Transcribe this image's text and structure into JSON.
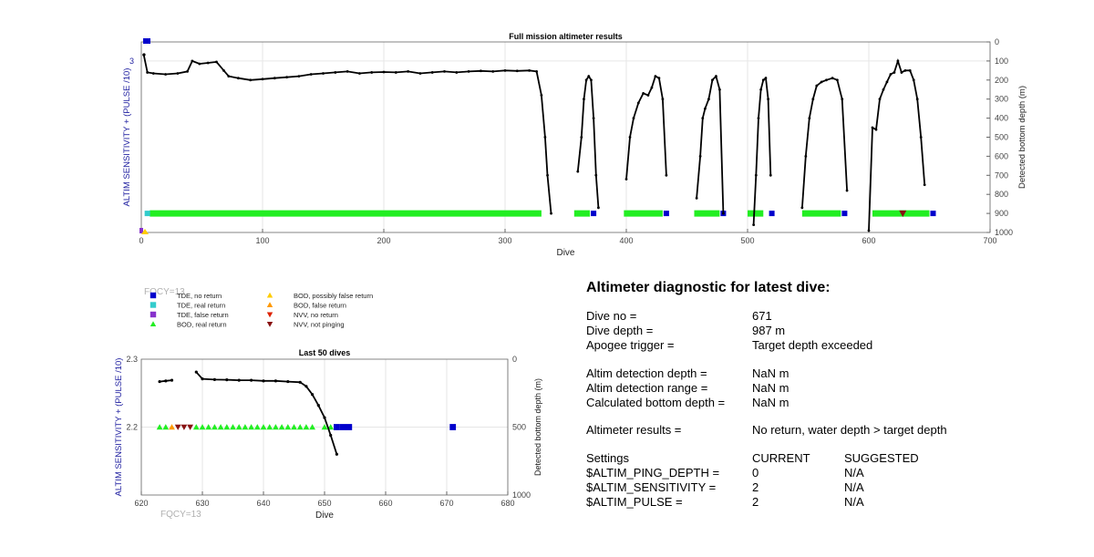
{
  "chart_data": [
    {
      "type": "scatter",
      "title": "Full mission altimeter results",
      "xlabel": "Dive",
      "ylabel_left": "ALTIM SENSITIVITY + (PULSE /10)",
      "ylabel_right": "Detected bottom depth (m)",
      "xlim": [
        0,
        700
      ],
      "ylim_right": [
        0,
        1000
      ],
      "right_axis_reversed": true,
      "xticks": [
        0,
        100,
        200,
        300,
        400,
        500,
        600,
        700
      ],
      "right_ticks": [
        0,
        100,
        200,
        300,
        400,
        500,
        600,
        700,
        800,
        900,
        1000
      ],
      "left_ticks": [
        {
          "value": 3
        }
      ],
      "grid": true,
      "series": [
        {
          "name": "Detected bottom depth",
          "segments": [
            [
              [
                2,
                68
              ],
              [
                5,
                160
              ],
              [
                10,
                165
              ],
              [
                20,
                170
              ],
              [
                30,
                165
              ],
              [
                38,
                155
              ],
              [
                42,
                100
              ],
              [
                48,
                115
              ],
              [
                55,
                110
              ],
              [
                62,
                105
              ],
              [
                68,
                150
              ],
              [
                72,
                180
              ],
              [
                80,
                190
              ],
              [
                90,
                200
              ],
              [
                100,
                195
              ],
              [
                110,
                190
              ],
              [
                120,
                185
              ],
              [
                130,
                180
              ],
              [
                140,
                170
              ],
              [
                150,
                165
              ],
              [
                160,
                160
              ],
              [
                170,
                155
              ],
              [
                180,
                165
              ],
              [
                190,
                160
              ],
              [
                200,
                158
              ],
              [
                210,
                160
              ],
              [
                220,
                155
              ],
              [
                230,
                165
              ],
              [
                240,
                160
              ],
              [
                250,
                155
              ],
              [
                260,
                160
              ],
              [
                270,
                155
              ],
              [
                280,
                152
              ],
              [
                290,
                155
              ],
              [
                300,
                150
              ],
              [
                310,
                152
              ],
              [
                320,
                150
              ],
              [
                326,
                155
              ],
              [
                330,
                280
              ],
              [
                333,
                500
              ],
              [
                335,
                700
              ],
              [
                338,
                900
              ]
            ],
            [
              [
                360,
                680
              ],
              [
                363,
                500
              ],
              [
                365,
                300
              ],
              [
                367,
                200
              ],
              [
                369,
                180
              ],
              [
                371,
                200
              ],
              [
                373,
                400
              ],
              [
                375,
                700
              ],
              [
                377,
                870
              ]
            ],
            [
              [
                400,
                720
              ],
              [
                403,
                500
              ],
              [
                406,
                400
              ],
              [
                410,
                320
              ],
              [
                414,
                270
              ],
              [
                418,
                280
              ],
              [
                421,
                240
              ],
              [
                424,
                180
              ],
              [
                427,
                190
              ],
              [
                430,
                300
              ],
              [
                433,
                700
              ]
            ],
            [
              [
                458,
                820
              ],
              [
                461,
                600
              ],
              [
                463,
                400
              ],
              [
                465,
                350
              ],
              [
                468,
                300
              ],
              [
                471,
                200
              ],
              [
                474,
                180
              ],
              [
                477,
                250
              ],
              [
                480,
                900
              ]
            ],
            [
              [
                505,
                960
              ],
              [
                507,
                700
              ],
              [
                509,
                400
              ],
              [
                511,
                250
              ],
              [
                513,
                200
              ],
              [
                515,
                190
              ],
              [
                517,
                300
              ],
              [
                519,
                700
              ]
            ],
            [
              [
                545,
                870
              ],
              [
                548,
                600
              ],
              [
                551,
                400
              ],
              [
                554,
                300
              ],
              [
                557,
                230
              ],
              [
                561,
                210
              ],
              [
                565,
                200
              ],
              [
                570,
                190
              ],
              [
                574,
                200
              ],
              [
                578,
                300
              ],
              [
                582,
                780
              ]
            ],
            [
              [
                600,
                990
              ],
              [
                603,
                450
              ],
              [
                606,
                460
              ],
              [
                609,
                300
              ],
              [
                612,
                250
              ],
              [
                615,
                210
              ],
              [
                618,
                170
              ],
              [
                621,
                160
              ],
              [
                624,
                100
              ],
              [
                627,
                160
              ],
              [
                630,
                150
              ],
              [
                634,
                150
              ],
              [
                637,
                200
              ],
              [
                640,
                300
              ],
              [
                643,
                500
              ],
              [
                646,
                750
              ]
            ]
          ]
        },
        {
          "name": "BOD, real return",
          "segments": [
            [
              [
                7,
                900
              ],
              [
                330,
                900
              ]
            ],
            [
              [
                357,
                900
              ],
              [
                370,
                900
              ]
            ],
            [
              [
                398,
                900
              ],
              [
                430,
                900
              ]
            ],
            [
              [
                456,
                900
              ],
              [
                477,
                900
              ]
            ],
            [
              [
                500,
                900
              ],
              [
                513,
                900
              ]
            ],
            [
              [
                545,
                900
              ],
              [
                577,
                900
              ]
            ],
            [
              [
                603,
                900
              ],
              [
                650,
                900
              ]
            ]
          ]
        },
        {
          "name": "TDE, no return",
          "points": [
            [
              373,
              900
            ],
            [
              433,
              900
            ],
            [
              480,
              900
            ],
            [
              520,
              900
            ],
            [
              580,
              900
            ],
            [
              653,
              900
            ]
          ]
        },
        {
          "name": "NVV, not pinging",
          "points": [
            [
              628,
              900
            ]
          ]
        }
      ],
      "annotations": [
        "FQCY=13"
      ]
    },
    {
      "type": "scatter",
      "title": "Last 50 dives",
      "xlabel": "Dive",
      "ylabel_left": "ALTIM SENSITIVITY + (PULSE /10)",
      "ylabel_right": "Detected bottom depth (m)",
      "xlim": [
        620,
        680
      ],
      "ylim_left": [
        2.1,
        2.3
      ],
      "ylim_right": [
        0,
        1000
      ],
      "right_axis_reversed": true,
      "xticks": [
        620,
        630,
        640,
        650,
        660,
        670,
        680
      ],
      "left_ticks": [
        2.2,
        2.3
      ],
      "right_ticks": [
        0,
        500,
        1000
      ],
      "grid": true,
      "series": [
        {
          "name": "Detected bottom depth",
          "segments": [
            [
              [
                623,
                165
              ],
              [
                624,
                160
              ],
              [
                625,
                155
              ]
            ],
            [
              [
                629,
                95
              ],
              [
                630,
                145
              ],
              [
                632,
                150
              ],
              [
                634,
                152
              ],
              [
                636,
                155
              ],
              [
                638,
                155
              ],
              [
                640,
                160
              ],
              [
                642,
                160
              ],
              [
                644,
                165
              ],
              [
                646,
                170
              ],
              [
                647,
                200
              ],
              [
                648,
                260
              ],
              [
                649,
                340
              ],
              [
                650,
                430
              ],
              [
                651,
                560
              ],
              [
                652,
                700
              ]
            ]
          ]
        },
        {
          "name": "BOD, real return",
          "points": [
            [
              623,
              2.2
            ],
            [
              624,
              2.2
            ],
            [
              629,
              2.2
            ],
            [
              630,
              2.2
            ],
            [
              631,
              2.2
            ],
            [
              632,
              2.2
            ],
            [
              633,
              2.2
            ],
            [
              634,
              2.2
            ],
            [
              635,
              2.2
            ],
            [
              636,
              2.2
            ],
            [
              637,
              2.2
            ],
            [
              638,
              2.2
            ],
            [
              639,
              2.2
            ],
            [
              640,
              2.2
            ],
            [
              641,
              2.2
            ],
            [
              642,
              2.2
            ],
            [
              643,
              2.2
            ],
            [
              644,
              2.2
            ],
            [
              645,
              2.2
            ],
            [
              646,
              2.2
            ],
            [
              647,
              2.2
            ],
            [
              648,
              2.2
            ],
            [
              650,
              2.2
            ],
            [
              651,
              2.2
            ]
          ]
        },
        {
          "name": "BOD, false return",
          "points": [
            [
              625,
              2.2
            ]
          ]
        },
        {
          "name": "NVV, not pinging",
          "points": [
            [
              626,
              2.2
            ],
            [
              627,
              2.2
            ],
            [
              628,
              2.2
            ]
          ]
        },
        {
          "name": "TDE, no return",
          "points": [
            [
              652,
              2.2
            ],
            [
              653,
              2.2
            ],
            [
              654,
              2.2
            ],
            [
              671,
              2.2
            ]
          ]
        }
      ],
      "annotations": [
        "FQCY=13"
      ]
    }
  ],
  "legend": {
    "items": [
      {
        "label": "TDE, no return",
        "marker": "square",
        "color": "#0000cc"
      },
      {
        "label": "TDE, real return",
        "marker": "square",
        "color": "#33cccc"
      },
      {
        "label": "TDE, false return",
        "marker": "square",
        "color": "#8833cc"
      },
      {
        "label": "BOD, real return",
        "marker": "triangle-up",
        "color": "#22ee22"
      },
      {
        "label": "BOD, possibly false return",
        "marker": "triangle-up",
        "color": "#ffcc00"
      },
      {
        "label": "BOD, false return",
        "marker": "triangle-up",
        "color": "#ff9900"
      },
      {
        "label": "NVV, no return",
        "marker": "triangle-down",
        "color": "#dd2200"
      },
      {
        "label": "NVV, not pinging",
        "marker": "triangle-down",
        "color": "#881111"
      }
    ],
    "placement": "below top chart, left"
  },
  "colors": {
    "axis_text": "#444444",
    "left_axis_text": "#1f1fa0",
    "depth_line": "#000000",
    "fqcy_text": "#b0b0b0",
    "grid": "#e6e6e6"
  },
  "diagnostic": {
    "title": "Altimeter diagnostic for latest dive:",
    "dive_no_label": "Dive no =",
    "dive_no_value": "671",
    "dive_depth_label": "Dive depth =",
    "dive_depth_value": "987 m",
    "apogee_label": "Apogee trigger =",
    "apogee_value": "Target depth exceeded",
    "altim_det_depth_label": "Altim detection depth =",
    "altim_det_depth_value": "NaN m",
    "altim_det_range_label": "Altim detection range =",
    "altim_det_range_value": "NaN m",
    "calc_bottom_label": "Calculated bottom depth =",
    "calc_bottom_value": "NaN m",
    "results_label": "Altimeter results =",
    "results_value": "No return, water depth > target depth",
    "settings_label": "Settings",
    "current_header": "CURRENT",
    "suggested_header": "SUGGESTED",
    "settings": [
      {
        "name": "$ALTIM_PING_DEPTH =",
        "current": "0",
        "suggested": "N/A"
      },
      {
        "name": "$ALTIM_SENSITIVITY =",
        "current": "2",
        "suggested": "N/A"
      },
      {
        "name": "$ALTIM_PULSE =",
        "current": "2",
        "suggested": "N/A"
      }
    ]
  }
}
